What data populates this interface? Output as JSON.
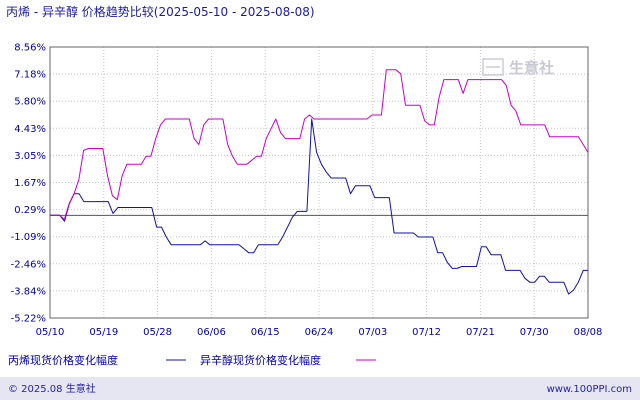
{
  "chart_data": {
    "type": "line",
    "title": "丙烯 - 异辛醇 价格趋势比较(2025-05-10 - 2025-08-08)",
    "x_ticks": [
      "05/10",
      "05/19",
      "05/28",
      "06/06",
      "06/15",
      "06/24",
      "07/03",
      "07/12",
      "07/21",
      "07/30",
      "08/08"
    ],
    "y_ticks": [
      "8.56%",
      "7.18%",
      "5.80%",
      "4.43%",
      "3.05%",
      "1.67%",
      "0.29%",
      "-1.09%",
      "-2.46%",
      "-3.84%",
      "-5.22%"
    ],
    "ylim": [
      -5.22,
      8.56
    ],
    "zero_line": 0,
    "grid": true,
    "legend_position": "bottom",
    "series": [
      {
        "name": "丙烯现货价格变化幅度",
        "color": "#1010b0",
        "values": [
          0,
          0,
          0,
          -0.3,
          0.6,
          1.1,
          1.1,
          0.7,
          0.7,
          0.7,
          0.7,
          0.7,
          0.7,
          0.1,
          0.4,
          0.4,
          0.4,
          0.4,
          0.4,
          0.4,
          0.4,
          0.4,
          -0.6,
          -0.6,
          -1.1,
          -1.5,
          -1.5,
          -1.5,
          -1.5,
          -1.5,
          -1.5,
          -1.5,
          -1.3,
          -1.5,
          -1.5,
          -1.5,
          -1.5,
          -1.5,
          -1.5,
          -1.5,
          -1.7,
          -1.9,
          -1.9,
          -1.5,
          -1.5,
          -1.5,
          -1.5,
          -1.5,
          -1.1,
          -0.6,
          -0.1,
          0.2,
          0.2,
          0.2,
          4.9,
          3.2,
          2.6,
          2.2,
          1.9,
          1.9,
          1.9,
          1.9,
          1.1,
          1.5,
          1.5,
          1.5,
          1.5,
          0.9,
          0.9,
          0.9,
          0.9,
          -0.9,
          -0.9,
          -0.9,
          -0.9,
          -0.9,
          -1.1,
          -1.1,
          -1.1,
          -1.1,
          -1.9,
          -1.9,
          -2.4,
          -2.7,
          -2.7,
          -2.6,
          -2.6,
          -2.6,
          -2.6,
          -1.6,
          -1.6,
          -2.0,
          -2.0,
          -2.0,
          -2.8,
          -2.8,
          -2.8,
          -2.8,
          -3.2,
          -3.4,
          -3.4,
          -3.1,
          -3.1,
          -3.4,
          -3.4,
          -3.4,
          -3.4,
          -4.0,
          -3.8,
          -3.4,
          -2.8,
          -2.8
        ]
      },
      {
        "name": "异辛醇现货价格变化幅度",
        "color": "#c800c8",
        "values": [
          0,
          0,
          0,
          -0.2,
          0.6,
          1.1,
          1.8,
          3.3,
          3.4,
          3.4,
          3.4,
          3.4,
          2.0,
          1.0,
          0.8,
          2.0,
          2.6,
          2.6,
          2.6,
          2.6,
          3.0,
          3.0,
          3.9,
          4.6,
          4.9,
          4.9,
          4.9,
          4.9,
          4.9,
          4.9,
          3.9,
          3.6,
          4.6,
          4.9,
          4.9,
          4.9,
          4.9,
          3.6,
          3.0,
          2.6,
          2.6,
          2.6,
          2.8,
          3.0,
          3.0,
          3.9,
          4.4,
          4.9,
          4.2,
          3.9,
          3.9,
          3.9,
          3.9,
          4.9,
          5.1,
          4.9,
          4.9,
          4.9,
          4.9,
          4.9,
          4.9,
          4.9,
          4.9,
          4.9,
          4.9,
          4.9,
          4.9,
          5.1,
          5.1,
          5.1,
          7.4,
          7.4,
          7.4,
          7.2,
          5.6,
          5.6,
          5.6,
          5.6,
          4.8,
          4.6,
          4.6,
          6.0,
          6.9,
          6.9,
          6.9,
          6.9,
          6.2,
          6.9,
          6.9,
          6.9,
          6.9,
          6.9,
          6.9,
          6.9,
          6.9,
          6.6,
          5.6,
          5.3,
          4.6,
          4.6,
          4.6,
          4.6,
          4.6,
          4.6,
          4.0,
          4.0,
          4.0,
          4.0,
          4.0,
          4.0,
          4.0,
          3.6,
          3.2
        ]
      }
    ]
  },
  "watermark": {
    "text": "生意社"
  },
  "footer": {
    "left": "© 2025.08 生意社",
    "right": "www.100PPI.com"
  }
}
